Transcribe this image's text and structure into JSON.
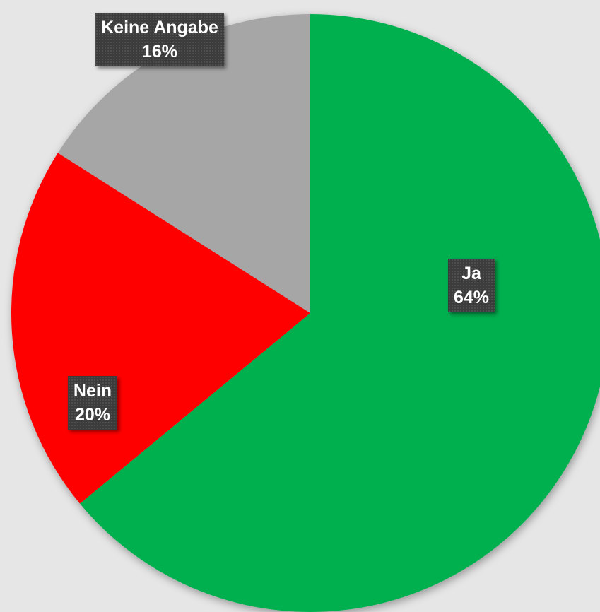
{
  "chart_data": {
    "type": "pie",
    "title": "",
    "start_angle_deg": 0,
    "direction": "clockwise",
    "legend": "none",
    "slices": [
      {
        "label": "Ja",
        "value": 64,
        "value_label": "64%",
        "color": "#00b050"
      },
      {
        "label": "Nein",
        "value": 20,
        "value_label": "20%",
        "color": "#ff0000"
      },
      {
        "label": "Keine Angabe",
        "value": 16,
        "value_label": "16%",
        "color": "#a6a6a6"
      }
    ]
  }
}
